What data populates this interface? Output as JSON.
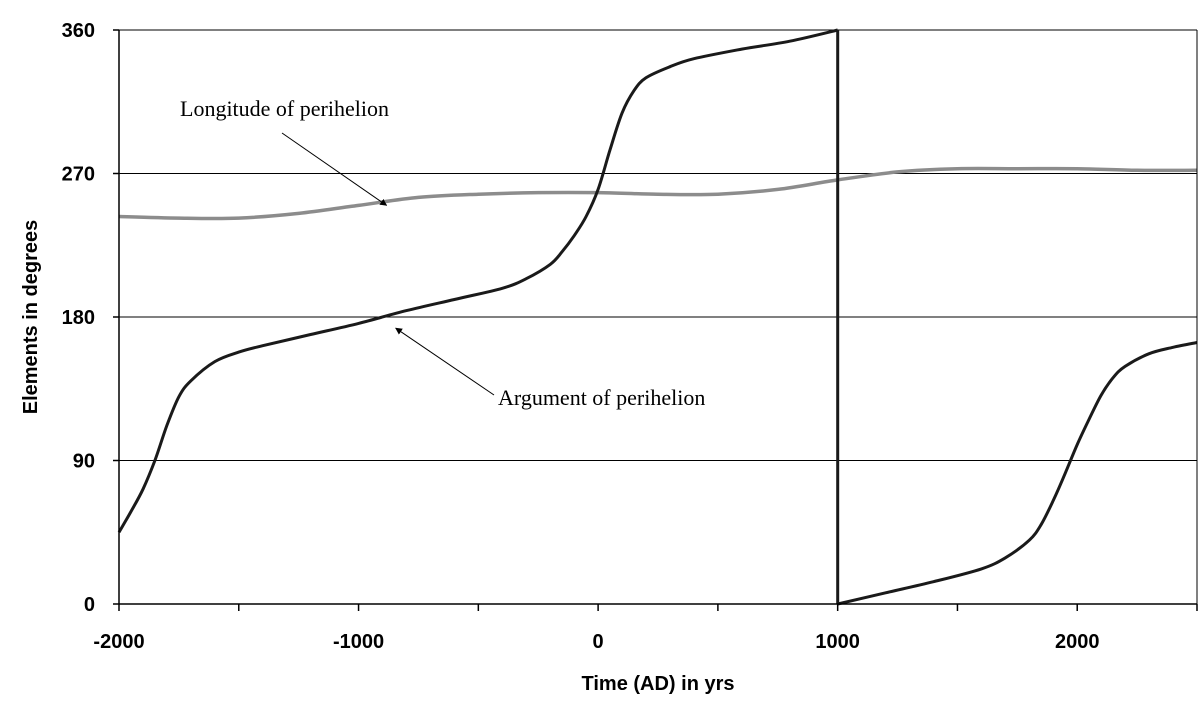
{
  "chart_data": {
    "type": "line",
    "xlabel": "Time (AD) in yrs",
    "ylabel": "Elements in degrees",
    "xlim": [
      -2000,
      2500
    ],
    "ylim": [
      0,
      360
    ],
    "x_ticks": [
      -2000,
      -1000,
      0,
      1000,
      2000
    ],
    "y_ticks": [
      0,
      90,
      180,
      270,
      360
    ],
    "grid": "horizontal",
    "series": [
      {
        "name": "Longitude of perihelion",
        "color": "#8c8c8c",
        "x": [
          -2000,
          -1750,
          -1500,
          -1250,
          -1000,
          -750,
          -500,
          -250,
          0,
          250,
          500,
          750,
          1000,
          1250,
          1500,
          1750,
          2000,
          2250,
          2500
        ],
        "y": [
          243,
          242,
          242,
          245,
          250,
          255,
          257,
          258,
          258,
          257,
          257,
          260,
          266,
          271,
          273,
          273,
          273,
          272,
          272
        ]
      },
      {
        "name": "Argument of perihelion",
        "color": "#1a1a1a",
        "x": [
          -2000,
          -1950,
          -1900,
          -1850,
          -1800,
          -1750,
          -1700,
          -1600,
          -1500,
          -1400,
          -1200,
          -1000,
          -800,
          -600,
          -400,
          -300,
          -200,
          -150,
          -100,
          -50,
          0,
          50,
          100,
          150,
          200,
          300,
          400,
          600,
          800,
          1000,
          1000,
          1200,
          1400,
          1600,
          1700,
          1800,
          1850,
          1900,
          1950,
          2000,
          2050,
          2100,
          2150,
          2200,
          2300,
          2400,
          2500
        ],
        "y": [
          45,
          58,
          72,
          90,
          112,
          130,
          140,
          152,
          158,
          162,
          169,
          176,
          184,
          191,
          198,
          204,
          213,
          221,
          231,
          243,
          260,
          285,
          308,
          322,
          330,
          337,
          342,
          348,
          353,
          360,
          0,
          7,
          14,
          22,
          29,
          40,
          50,
          65,
          82,
          100,
          116,
          131,
          142,
          149,
          157,
          161,
          164
        ]
      }
    ],
    "annotations": [
      {
        "text": "Longitude of perihelion",
        "series": "Longitude of perihelion"
      },
      {
        "text": "Argument of perihelion",
        "series": "Argument of perihelion"
      }
    ]
  }
}
